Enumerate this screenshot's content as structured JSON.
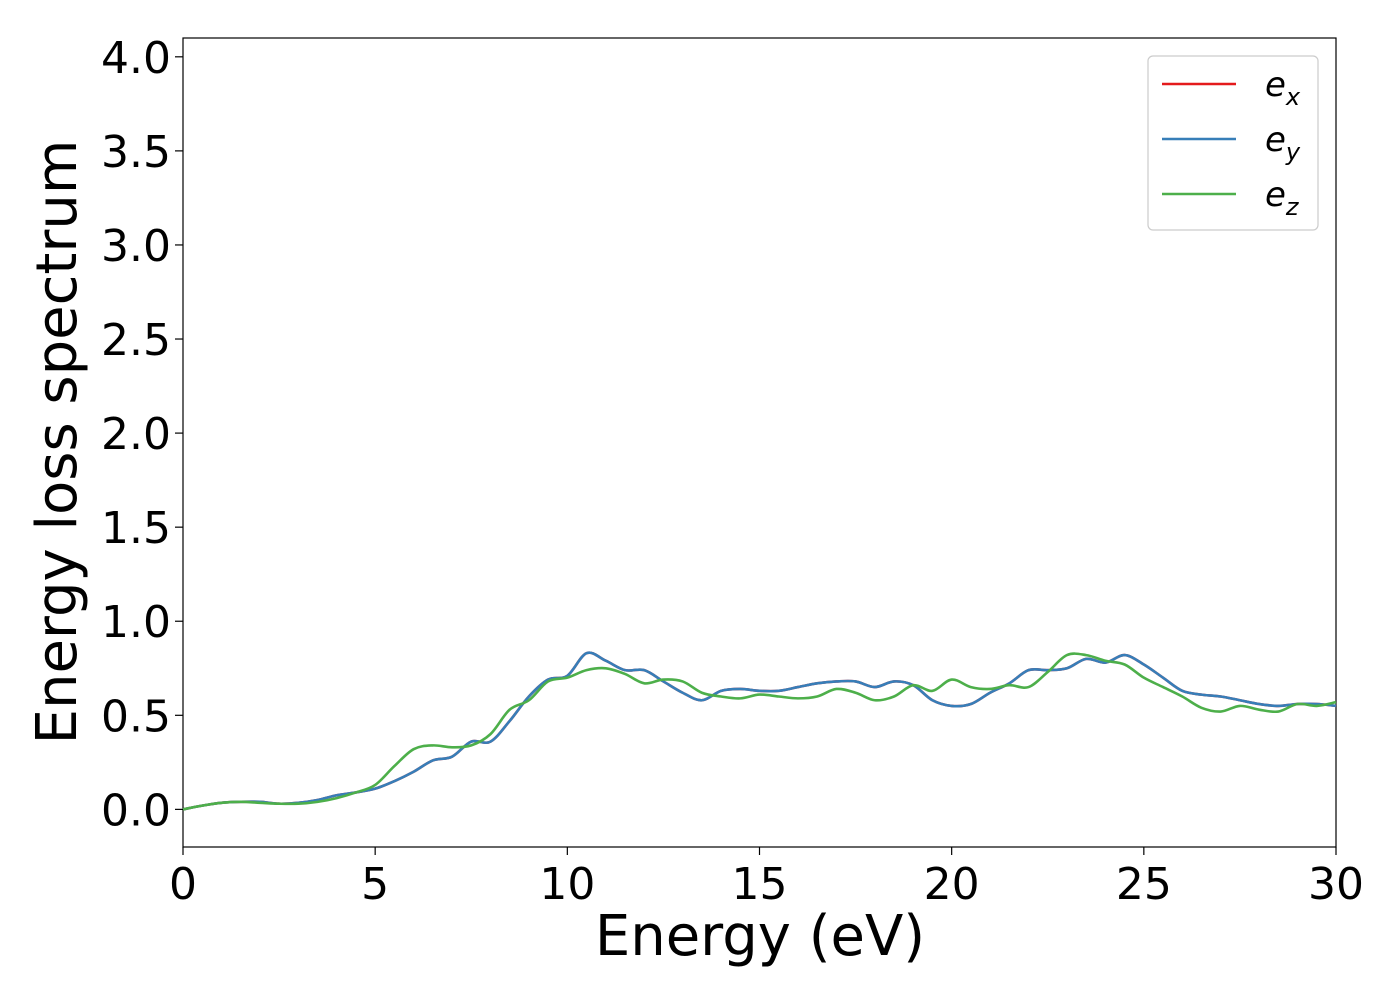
{
  "chart_data": {
    "type": "line",
    "xlabel": "Energy (eV)",
    "ylabel": "Energy loss spectrum",
    "xlim": [
      0,
      30
    ],
    "ylim": [
      -0.2,
      4.1
    ],
    "xticks": [
      0,
      5,
      10,
      15,
      20,
      25,
      30
    ],
    "xtick_labels": [
      "0",
      "5",
      "10",
      "15",
      "20",
      "25",
      "30"
    ],
    "yticks": [
      0.0,
      0.5,
      1.0,
      1.5,
      2.0,
      2.5,
      3.0,
      3.5,
      4.0
    ],
    "ytick_labels": [
      "0.0",
      "0.5",
      "1.0",
      "1.5",
      "2.0",
      "2.5",
      "3.0",
      "3.5",
      "4.0"
    ],
    "grid": false,
    "legend_position": "top-right",
    "series": [
      {
        "name": "e_x",
        "label_base": "e",
        "label_sub": "x",
        "color": "#e41a1c",
        "x": [
          0,
          0.5,
          1,
          1.5,
          2,
          2.5,
          3,
          3.5,
          4,
          4.5,
          5,
          5.5,
          6,
          6.5,
          7,
          7.5,
          8,
          8.5,
          9,
          9.5,
          10,
          10.5,
          11,
          11.5,
          12,
          12.5,
          13,
          13.5,
          14,
          14.5,
          15,
          15.5,
          16,
          16.5,
          17,
          17.5,
          18,
          18.5,
          19,
          19.5,
          20,
          20.5,
          21,
          21.5,
          22,
          22.5,
          23,
          23.5,
          24,
          24.5,
          25,
          25.5,
          26,
          26.5,
          27,
          27.5,
          28,
          28.5,
          29,
          29.5,
          30
        ],
        "y": [
          0.0,
          0.02,
          0.035,
          0.04,
          0.04,
          0.03,
          0.035,
          0.05,
          0.075,
          0.09,
          0.11,
          0.15,
          0.2,
          0.26,
          0.28,
          0.36,
          0.36,
          0.47,
          0.6,
          0.69,
          0.71,
          0.83,
          0.79,
          0.74,
          0.74,
          0.68,
          0.62,
          0.58,
          0.63,
          0.64,
          0.63,
          0.63,
          0.65,
          0.67,
          0.68,
          0.68,
          0.65,
          0.68,
          0.66,
          0.58,
          0.55,
          0.56,
          0.62,
          0.67,
          0.74,
          0.74,
          0.75,
          0.8,
          0.78,
          0.82,
          0.77,
          0.7,
          0.63,
          0.61,
          0.6,
          0.58,
          0.56,
          0.55,
          0.56,
          0.56,
          0.55
        ]
      },
      {
        "name": "e_y",
        "label_base": "e",
        "label_sub": "y",
        "color": "#377eb8",
        "x": [
          0,
          0.5,
          1,
          1.5,
          2,
          2.5,
          3,
          3.5,
          4,
          4.5,
          5,
          5.5,
          6,
          6.5,
          7,
          7.5,
          8,
          8.5,
          9,
          9.5,
          10,
          10.5,
          11,
          11.5,
          12,
          12.5,
          13,
          13.5,
          14,
          14.5,
          15,
          15.5,
          16,
          16.5,
          17,
          17.5,
          18,
          18.5,
          19,
          19.5,
          20,
          20.5,
          21,
          21.5,
          22,
          22.5,
          23,
          23.5,
          24,
          24.5,
          25,
          25.5,
          26,
          26.5,
          27,
          27.5,
          28,
          28.5,
          29,
          29.5,
          30
        ],
        "y": [
          0.0,
          0.02,
          0.035,
          0.04,
          0.04,
          0.03,
          0.035,
          0.05,
          0.075,
          0.09,
          0.11,
          0.15,
          0.2,
          0.26,
          0.28,
          0.36,
          0.36,
          0.47,
          0.6,
          0.69,
          0.71,
          0.83,
          0.79,
          0.74,
          0.74,
          0.68,
          0.62,
          0.58,
          0.63,
          0.64,
          0.63,
          0.63,
          0.65,
          0.67,
          0.68,
          0.68,
          0.65,
          0.68,
          0.66,
          0.58,
          0.55,
          0.56,
          0.62,
          0.67,
          0.74,
          0.74,
          0.75,
          0.8,
          0.78,
          0.82,
          0.77,
          0.7,
          0.63,
          0.61,
          0.6,
          0.58,
          0.56,
          0.55,
          0.56,
          0.56,
          0.55
        ]
      },
      {
        "name": "e_z",
        "label_base": "e",
        "label_sub": "z",
        "color": "#4daf4a",
        "x": [
          0,
          0.5,
          1,
          1.5,
          2,
          2.5,
          3,
          3.5,
          4,
          4.5,
          5,
          5.5,
          6,
          6.5,
          7,
          7.5,
          8,
          8.5,
          9,
          9.5,
          10,
          10.5,
          11,
          11.5,
          12,
          12.5,
          13,
          13.5,
          14,
          14.5,
          15,
          15.5,
          16,
          16.5,
          17,
          17.5,
          18,
          18.5,
          19,
          19.5,
          20,
          20.5,
          21,
          21.5,
          22,
          22.5,
          23,
          23.5,
          24,
          24.5,
          25,
          25.5,
          26,
          26.5,
          27,
          27.5,
          28,
          28.5,
          29,
          29.5,
          30
        ],
        "y": [
          0.0,
          0.02,
          0.035,
          0.04,
          0.035,
          0.03,
          0.03,
          0.04,
          0.06,
          0.09,
          0.13,
          0.23,
          0.32,
          0.34,
          0.33,
          0.34,
          0.4,
          0.53,
          0.58,
          0.68,
          0.7,
          0.74,
          0.75,
          0.72,
          0.67,
          0.69,
          0.68,
          0.62,
          0.6,
          0.59,
          0.61,
          0.6,
          0.59,
          0.6,
          0.64,
          0.62,
          0.58,
          0.6,
          0.66,
          0.63,
          0.69,
          0.65,
          0.64,
          0.66,
          0.65,
          0.73,
          0.82,
          0.82,
          0.79,
          0.77,
          0.7,
          0.65,
          0.6,
          0.54,
          0.52,
          0.55,
          0.53,
          0.52,
          0.56,
          0.55,
          0.57
        ]
      }
    ]
  }
}
